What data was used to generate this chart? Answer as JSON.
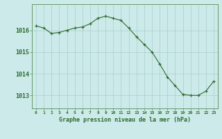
{
  "x": [
    0,
    1,
    2,
    3,
    4,
    5,
    6,
    7,
    8,
    9,
    10,
    11,
    12,
    13,
    14,
    15,
    16,
    17,
    18,
    19,
    20,
    21,
    22,
    23
  ],
  "y": [
    1016.2,
    1016.1,
    1015.85,
    1015.9,
    1016.0,
    1016.1,
    1016.15,
    1016.3,
    1016.55,
    1016.65,
    1016.55,
    1016.45,
    1016.1,
    1015.7,
    1015.35,
    1015.0,
    1014.45,
    1013.85,
    1013.45,
    1013.05,
    1013.0,
    1013.0,
    1013.2,
    1013.65
  ],
  "line_color": "#2d6a2d",
  "marker_color": "#2d6a2d",
  "bg_color": "#cceaea",
  "grid_color": "#aacccc",
  "axis_label_color": "#2d6a2d",
  "tick_label_color": "#2d6a2d",
  "xlabel": "Graphe pression niveau de la mer (hPa)",
  "ylim": [
    1012.4,
    1017.2
  ],
  "yticks": [
    1013,
    1014,
    1015,
    1016
  ],
  "xticks": [
    0,
    1,
    2,
    3,
    4,
    5,
    6,
    7,
    8,
    9,
    10,
    11,
    12,
    13,
    14,
    15,
    16,
    17,
    18,
    19,
    20,
    21,
    22,
    23
  ],
  "xlim": [
    -0.5,
    23.5
  ],
  "border_color": "#669966"
}
